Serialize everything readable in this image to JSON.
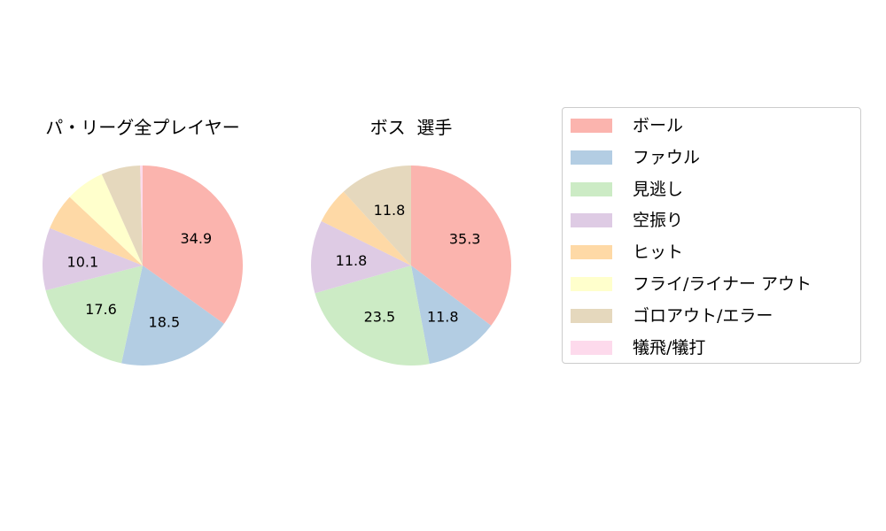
{
  "chart_data": [
    {
      "type": "pie",
      "title": "パ・リーグ全プレイヤー",
      "categories": [
        "ボール",
        "ファウル",
        "見逃し",
        "空振り",
        "ヒット",
        "フライ/ライナー アウト",
        "ゴロアウト/エラー",
        "犠飛/犠打"
      ],
      "values": [
        34.9,
        18.5,
        17.6,
        10.1,
        5.9,
        6.3,
        6.3,
        0.4
      ],
      "labels_shown": [
        "34.9",
        "18.5",
        "17.6",
        "10.1",
        "",
        "",
        "",
        ""
      ],
      "start_angle": 90,
      "direction": "clockwise"
    },
    {
      "type": "pie",
      "title": "ボス  選手",
      "categories": [
        "ボール",
        "ファウル",
        "見逃し",
        "空振り",
        "ヒット",
        "フライ/ライナー アウト",
        "ゴロアウト/エラー",
        "犠飛/犠打"
      ],
      "values": [
        35.3,
        11.8,
        23.5,
        11.8,
        5.9,
        0.0,
        11.8,
        0.0
      ],
      "labels_shown": [
        "35.3",
        "11.8",
        "23.5",
        "11.8",
        "",
        "",
        "11.8",
        ""
      ],
      "start_angle": 90,
      "direction": "clockwise"
    }
  ],
  "legend": {
    "position": "right",
    "items": [
      {
        "label": "ボール",
        "color": "#fbb4ae"
      },
      {
        "label": "ファウル",
        "color": "#b3cde3"
      },
      {
        "label": "見逃し",
        "color": "#ccebc5"
      },
      {
        "label": "空振り",
        "color": "#decbe4"
      },
      {
        "label": "ヒット",
        "color": "#fed9a6"
      },
      {
        "label": "フライ/ライナー アウト",
        "color": "#ffffcc"
      },
      {
        "label": "ゴロアウト/エラー",
        "color": "#e5d8bd"
      },
      {
        "label": "犠飛/犠打",
        "color": "#fddaec"
      }
    ]
  },
  "titles": {
    "left": "パ・リーグ全プレイヤー",
    "right": "ボス  選手"
  }
}
